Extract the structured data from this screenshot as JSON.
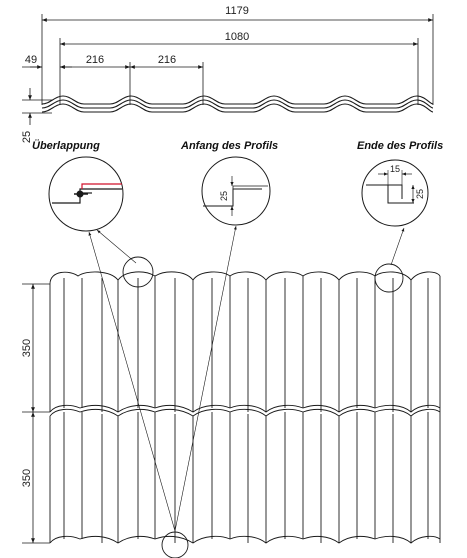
{
  "dimensions": {
    "overall_width": "1179",
    "covering_width": "1080",
    "edge_offset": "49",
    "wave_pitch_1": "216",
    "wave_pitch_2": "216",
    "profile_height": "25",
    "step_length_1": "350",
    "step_length_2": "350"
  },
  "details": {
    "overlap": {
      "title": "Überlappung"
    },
    "start": {
      "title": "Anfang des Profils",
      "dim": "25"
    },
    "end": {
      "title": "Ende des Profils",
      "dim_width": "15",
      "dim_height": "25"
    }
  },
  "colors": {
    "line": "#1a1a1a",
    "overlap_accent": "#d0102b"
  }
}
